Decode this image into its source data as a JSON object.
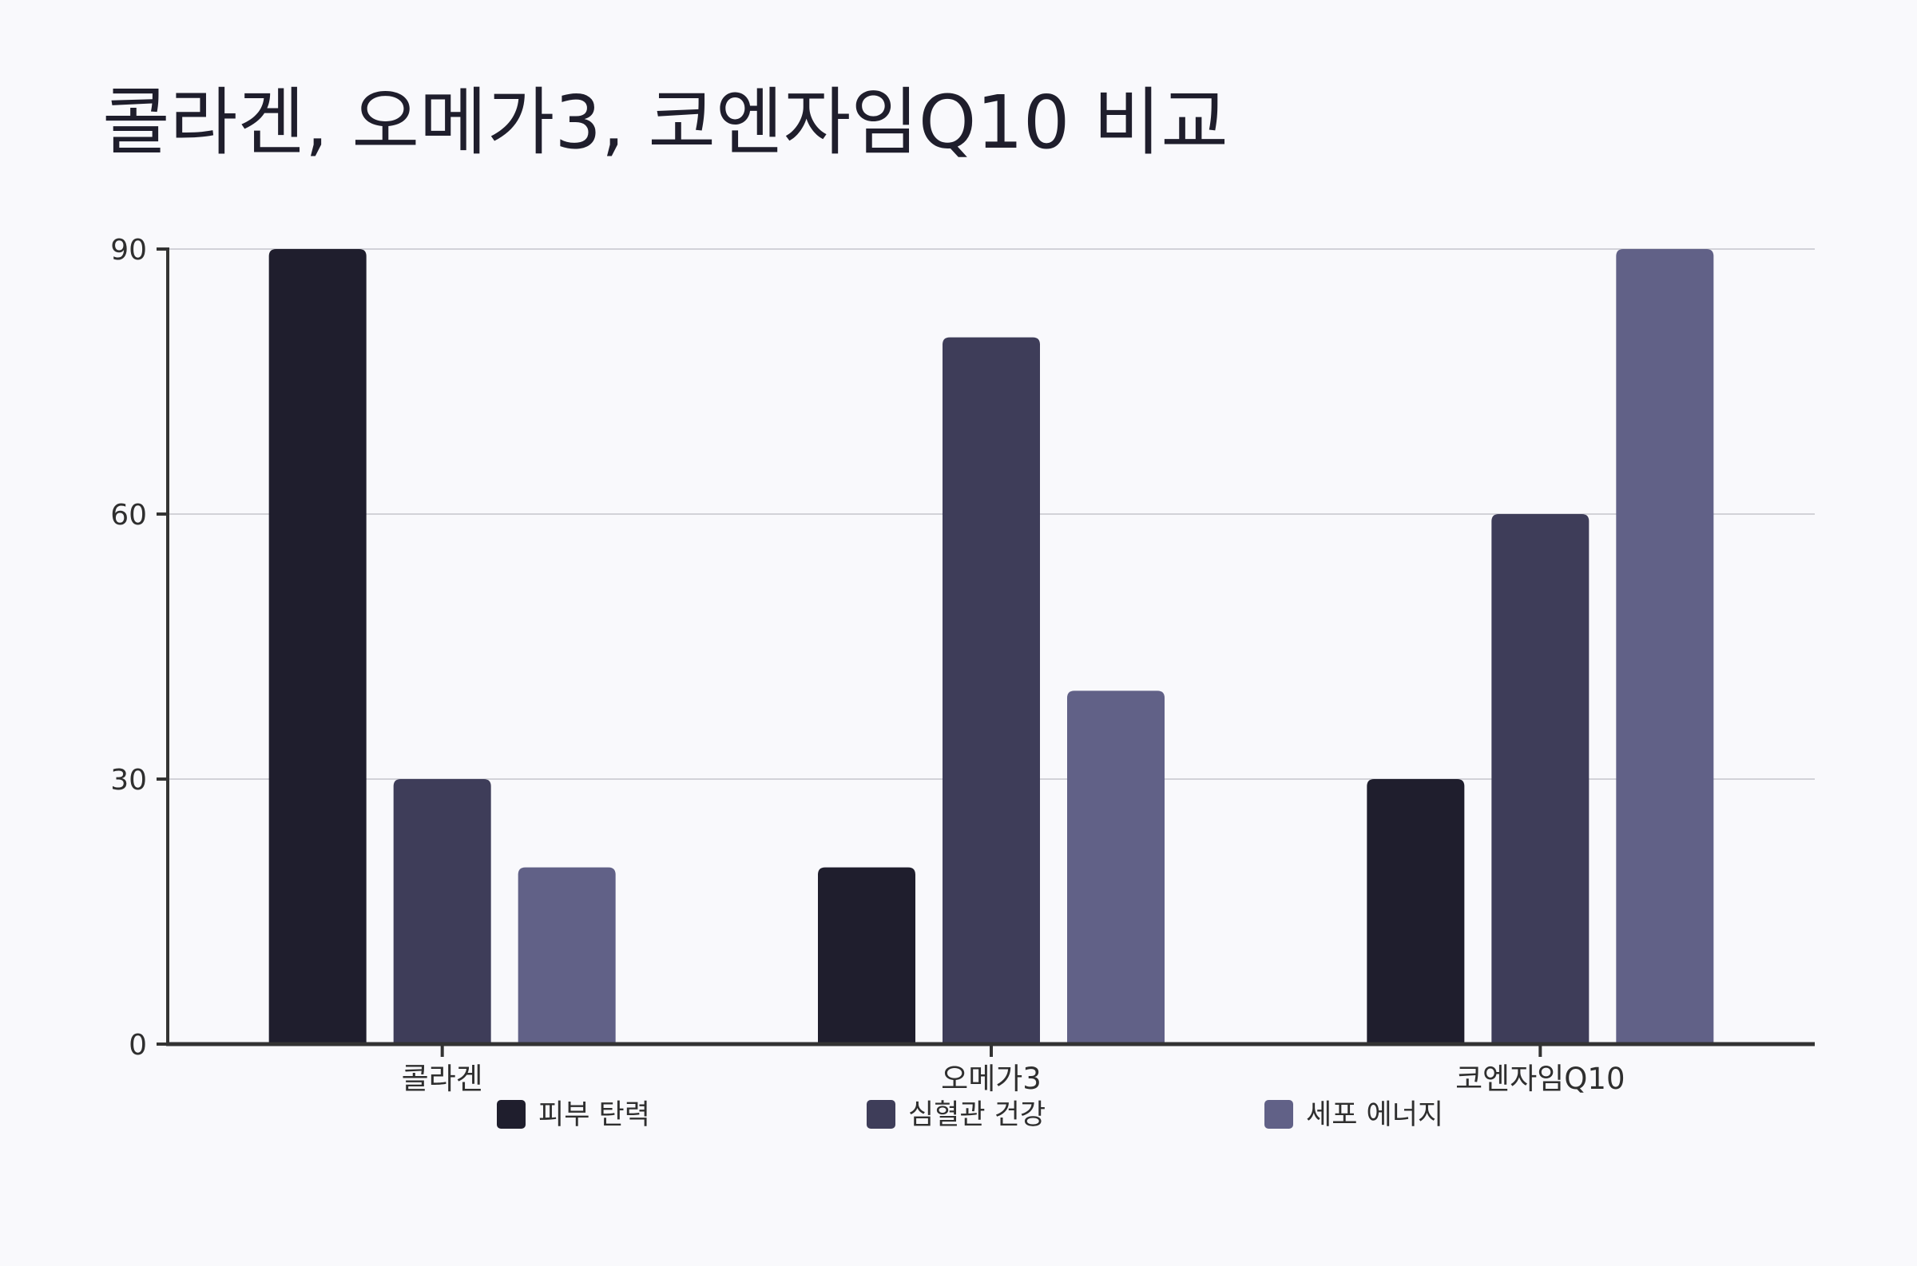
{
  "chart_data": {
    "type": "bar",
    "title": "콜라겐, 오메가3, 코엔자임Q10 비교",
    "xlabel": "",
    "ylabel": "",
    "categories": [
      "콜라겐",
      "오메가3",
      "코엔자임Q10"
    ],
    "series": [
      {
        "name": "피부 탄력",
        "values": [
          90,
          20,
          30
        ],
        "color": "#1f1e2d"
      },
      {
        "name": "심혈관 건강",
        "values": [
          30,
          80,
          60
        ],
        "color": "#3e3d59"
      },
      {
        "name": "세포 에너지",
        "values": [
          20,
          40,
          90
        ],
        "color": "#616187"
      }
    ],
    "ylim": [
      0,
      90
    ],
    "yticks": [
      0,
      30,
      60,
      90
    ],
    "grid": true,
    "legend_position": "bottom"
  }
}
